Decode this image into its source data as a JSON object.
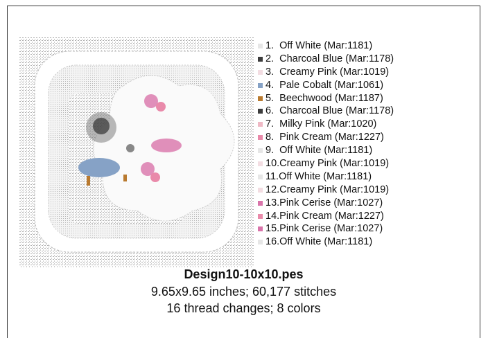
{
  "design": {
    "threads": [
      {
        "label": "1.  Off White (Mar:1181)",
        "color": "#e6e6e6"
      },
      {
        "label": "2.  Charcoal Blue (Mar:1178)",
        "color": "#3c3c3c"
      },
      {
        "label": "3.  Creamy Pink (Mar:1019)",
        "color": "#f3dde2"
      },
      {
        "label": "4.  Pale Cobalt (Mar:1061)",
        "color": "#86a2c6"
      },
      {
        "label": "5.  Beechwood (Mar:1187)",
        "color": "#b97a2f"
      },
      {
        "label": "6.  Charcoal Blue (Mar:1178)",
        "color": "#3c3c3c"
      },
      {
        "label": "7.  Milky Pink (Mar:1020)",
        "color": "#efb9c5"
      },
      {
        "label": "8.  Pink Cream (Mar:1227)",
        "color": "#e98aaa"
      },
      {
        "label": "9.  Off White (Mar:1181)",
        "color": "#e6e6e6"
      },
      {
        "label": "10.Creamy Pink (Mar:1019)",
        "color": "#f3dde2"
      },
      {
        "label": "11.Off White (Mar:1181)",
        "color": "#e6e6e6"
      },
      {
        "label": "12.Creamy Pink (Mar:1019)",
        "color": "#f3dde2"
      },
      {
        "label": "13.Pink Cerise (Mar:1027)",
        "color": "#d974aa"
      },
      {
        "label": "14.Pink Cream (Mar:1227)",
        "color": "#e98aaa"
      },
      {
        "label": "15.Pink Cerise (Mar:1027)",
        "color": "#d974aa"
      },
      {
        "label": "16.Off White (Mar:1181)",
        "color": "#e6e6e6"
      }
    ],
    "title": "Design10-10x10.pes",
    "size_line": "9.65x9.65 inches; 60,177 stitches",
    "colors_line": "16 thread changes; 8 colors"
  }
}
